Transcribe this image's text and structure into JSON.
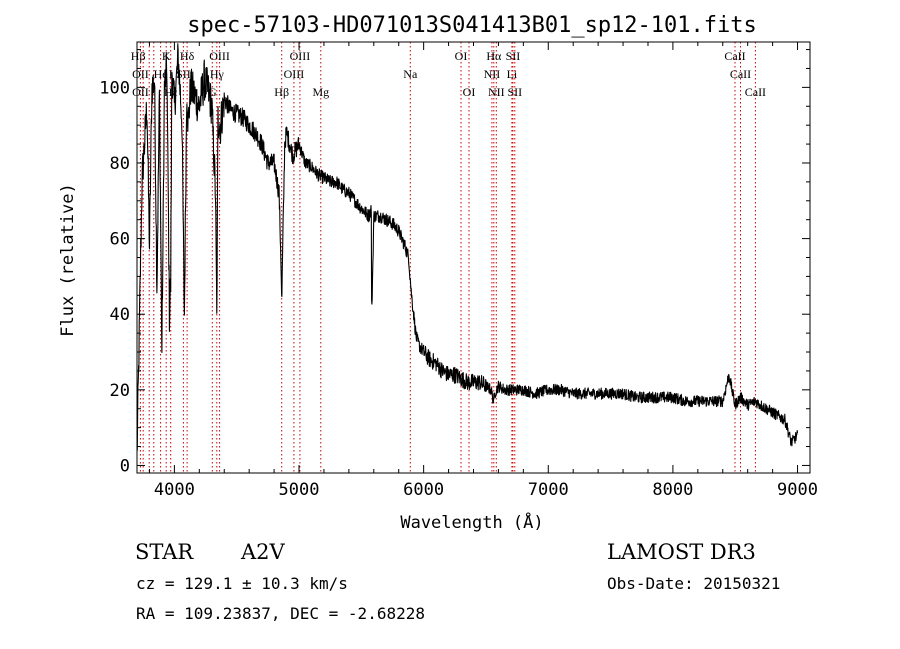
{
  "chart_data": {
    "type": "line",
    "title": "spec-57103-HD071013S041413B01_sp12-101.fits",
    "xlabel": "Wavelength (Å)",
    "ylabel": "Flux (relative)",
    "xlim": [
      3700,
      9100
    ],
    "ylim": [
      -2,
      112
    ],
    "xticks": [
      4000,
      5000,
      6000,
      7000,
      8000,
      9000
    ],
    "yticks": [
      0,
      20,
      40,
      60,
      80,
      100
    ],
    "series": [
      {
        "name": "spectrum",
        "x": [
          3700,
          3720,
          3740,
          3760,
          3780,
          3800,
          3820,
          3840,
          3860,
          3880,
          3900,
          3920,
          3940,
          3960,
          3970,
          3980,
          4000,
          4030,
          4060,
          4080,
          4100,
          4110,
          4130,
          4160,
          4200,
          4240,
          4280,
          4300,
          4330,
          4340,
          4350,
          4370,
          4400,
          4450,
          4500,
          4550,
          4600,
          4650,
          4700,
          4750,
          4800,
          4840,
          4855,
          4861,
          4868,
          4885,
          4900,
          4950,
          5000,
          5050,
          5100,
          5150,
          5200,
          5250,
          5300,
          5350,
          5400,
          5450,
          5500,
          5560,
          5580,
          5583,
          5600,
          5650,
          5700,
          5750,
          5800,
          5850,
          5880,
          5900,
          5920,
          5940,
          5960,
          6000,
          6050,
          6100,
          6150,
          6200,
          6250,
          6300,
          6350,
          6400,
          6450,
          6500,
          6540,
          6562,
          6570,
          6600,
          6650,
          6700,
          6800,
          6900,
          7000,
          7100,
          7200,
          7300,
          7400,
          7500,
          7600,
          7700,
          7800,
          7900,
          8000,
          8100,
          8200,
          8300,
          8400,
          8450,
          8498,
          8542,
          8600,
          8662,
          8700,
          8750,
          8800,
          8850,
          8900,
          8950,
          9000
        ],
        "values": [
          2,
          38,
          75,
          85,
          95,
          58,
          100,
          102,
          48,
          98,
          30,
          100,
          105,
          40,
          48,
          105,
          95,
          108,
          92,
          40,
          100,
          90,
          100,
          98,
          95,
          102,
          98,
          95,
          72,
          38,
          92,
          90,
          97,
          94,
          93,
          92,
          90,
          88,
          85,
          80,
          80,
          72,
          55,
          42,
          55,
          85,
          88,
          82,
          85,
          80,
          79,
          77,
          76,
          75,
          75,
          73,
          72,
          70,
          68,
          66,
          68,
          38,
          66,
          66,
          65,
          64,
          62,
          58,
          55,
          46,
          40,
          34,
          32,
          30,
          28,
          27,
          25,
          24,
          24,
          23,
          22,
          22,
          22,
          21,
          20,
          17,
          19,
          21,
          20,
          20,
          20,
          19,
          20,
          20,
          19,
          19,
          19,
          19,
          19,
          18,
          18,
          18,
          18,
          17,
          17,
          17,
          17,
          24,
          16,
          18,
          16,
          17,
          16,
          15,
          14,
          13,
          12,
          6,
          8
        ]
      }
    ],
    "emission_lines": [
      {
        "label": "Hβ",
        "x": 3710,
        "row": 1
      },
      {
        "label": "K",
        "x": 3934,
        "row": 1
      },
      {
        "label": "Hδ",
        "x": 4102,
        "row": 1
      },
      {
        "label": "OIII",
        "x": 4363,
        "row": 1
      },
      {
        "label": "OIII",
        "x": 5007,
        "row": 1
      },
      {
        "label": "OI",
        "x": 6300,
        "row": 1
      },
      {
        "label": "Hα",
        "x": 6563,
        "row": 1
      },
      {
        "label": "SII",
        "x": 6716,
        "row": 1
      },
      {
        "label": "CaII",
        "x": 8498,
        "row": 1
      },
      {
        "label": "OII",
        "x": 3727,
        "row": 2
      },
      {
        "label": "He",
        "x": 3889,
        "row": 2
      },
      {
        "label": "I",
        "x": 3970,
        "row": 2
      },
      {
        "label": "SII",
        "x": 4072,
        "row": 2
      },
      {
        "label": "Hγ",
        "x": 4340,
        "row": 2
      },
      {
        "label": "OIII",
        "x": 4959,
        "row": 2
      },
      {
        "label": "Na",
        "x": 5893,
        "row": 2
      },
      {
        "label": "NII",
        "x": 6548,
        "row": 2
      },
      {
        "label": "Li",
        "x": 6708,
        "row": 2
      },
      {
        "label": "CaII",
        "x": 8542,
        "row": 2
      },
      {
        "label": "OII",
        "x": 3727,
        "row": 3
      },
      {
        "label": "Hε",
        "x": 3970,
        "row": 3
      },
      {
        "label": "G",
        "x": 4304,
        "row": 3
      },
      {
        "label": "Hβ",
        "x": 4861,
        "row": 3
      },
      {
        "label": "Mg",
        "x": 5175,
        "row": 3
      },
      {
        "label": "OI",
        "x": 6364,
        "row": 3
      },
      {
        "label": "NII",
        "x": 6583,
        "row": 3
      },
      {
        "label": "SII",
        "x": 6731,
        "row": 3
      },
      {
        "label": "CaII",
        "x": 8662,
        "row": 3
      }
    ],
    "line_positions": [
      3727,
      3750,
      3798,
      3835,
      3889,
      3934,
      3970,
      4072,
      4102,
      4304,
      4340,
      4363,
      4861,
      4959,
      5007,
      5175,
      5893,
      6300,
      6364,
      6548,
      6563,
      6583,
      6708,
      6716,
      6731,
      8498,
      8542,
      8662
    ],
    "line_color": "#cc0000"
  },
  "info": {
    "object_type": "STAR",
    "subclass": "A2V",
    "survey": "LAMOST DR3",
    "redshift": "cz = 129.1 ± 10.3 km/s",
    "obs_date": "Obs-Date: 20150321",
    "coords": "RA = 109.23837, DEC =  -2.68228"
  }
}
